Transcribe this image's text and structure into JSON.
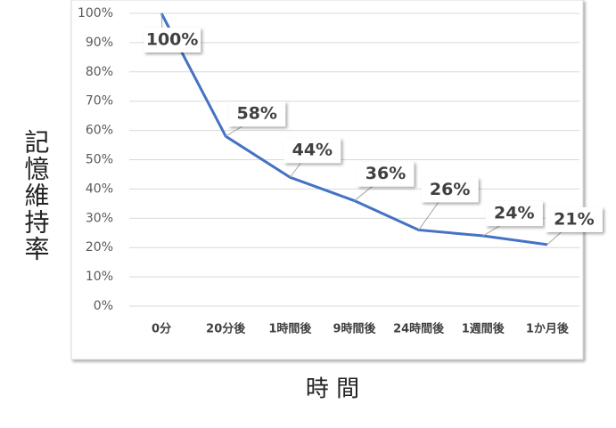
{
  "chart_data": {
    "type": "line",
    "categories": [
      "0分",
      "20分後",
      "1時間後",
      "9時間後",
      "24時間後",
      "1週間後",
      "1か月後"
    ],
    "series": [
      {
        "color": "#4472c4",
        "values": [
          100,
          58,
          44,
          36,
          26,
          24,
          21
        ],
        "value_labels": [
          "100%",
          "58%",
          "44%",
          "36%",
          "26%",
          "24%",
          "21%"
        ]
      }
    ],
    "ylim": [
      0,
      100
    ],
    "yticks": [
      {
        "value": 0,
        "label": "0%"
      },
      {
        "value": 10,
        "label": "10%"
      },
      {
        "value": 20,
        "label": "20%"
      },
      {
        "value": 30,
        "label": "30%"
      },
      {
        "value": 40,
        "label": "40%"
      },
      {
        "value": 50,
        "label": "50%"
      },
      {
        "value": 60,
        "label": "60%"
      },
      {
        "value": 70,
        "label": "70%"
      },
      {
        "value": 80,
        "label": "80%"
      },
      {
        "value": 90,
        "label": "90%"
      },
      {
        "value": 100,
        "label": "100%"
      }
    ],
    "grid": true,
    "xlabel": "時 間",
    "ylabel": "記憶維持率"
  }
}
